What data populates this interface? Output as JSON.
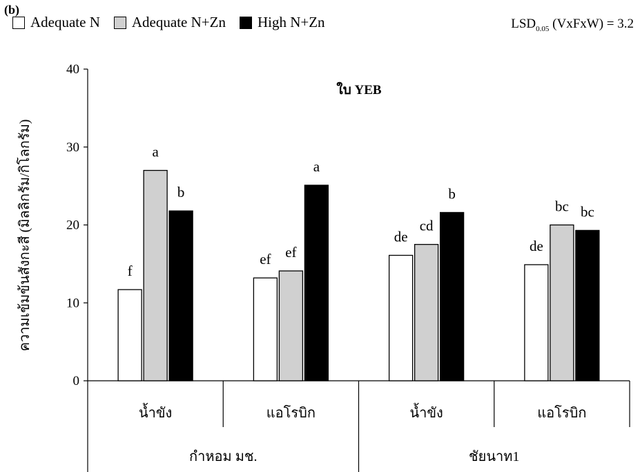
{
  "panel_label": "(b)",
  "legend": [
    {
      "name": "Adequate N",
      "color": "#ffffff"
    },
    {
      "name": "Adequate N+Zn",
      "color": "#d0d0d0"
    },
    {
      "name": "High N+Zn",
      "color": "#000000"
    }
  ],
  "lsd": {
    "prefix": "LSD",
    "sub": "0.05",
    "suffix": " (VxFxW) = 3.2"
  },
  "chart_data": {
    "type": "bar",
    "title": "ใบ YEB",
    "ylabel": "ความเข้มข้นสังกะสี (มิลลิกรัม/กิโลกรัม)",
    "ylim": [
      0,
      40
    ],
    "yticks": [
      0,
      10,
      20,
      30,
      40
    ],
    "grid": false,
    "legend_position": "top",
    "categories": [
      "น้ำขัง",
      "แอโรบิก",
      "น้ำขัง",
      "แอโรบิก"
    ],
    "groups": [
      {
        "name": "กำหอม มช.",
        "categories": [
          "น้ำขัง",
          "แอโรบิก"
        ]
      },
      {
        "name": "ชัยนาท1",
        "categories": [
          "น้ำขัง",
          "แอโรบิก"
        ]
      }
    ],
    "series": [
      {
        "name": "Adequate N",
        "color": "#ffffff",
        "values": [
          11.7,
          13.2,
          16.1,
          14.9
        ],
        "labels": [
          "f",
          "ef",
          "de",
          "de"
        ]
      },
      {
        "name": "Adequate N+Zn",
        "color": "#d0d0d0",
        "values": [
          27.0,
          14.1,
          17.5,
          20.0
        ],
        "labels": [
          "a",
          "ef",
          "cd",
          "bc"
        ]
      },
      {
        "name": "High N+Zn",
        "color": "#000000",
        "values": [
          21.8,
          25.1,
          21.6,
          19.3
        ],
        "labels": [
          "b",
          "a",
          "b",
          "bc"
        ]
      }
    ]
  }
}
